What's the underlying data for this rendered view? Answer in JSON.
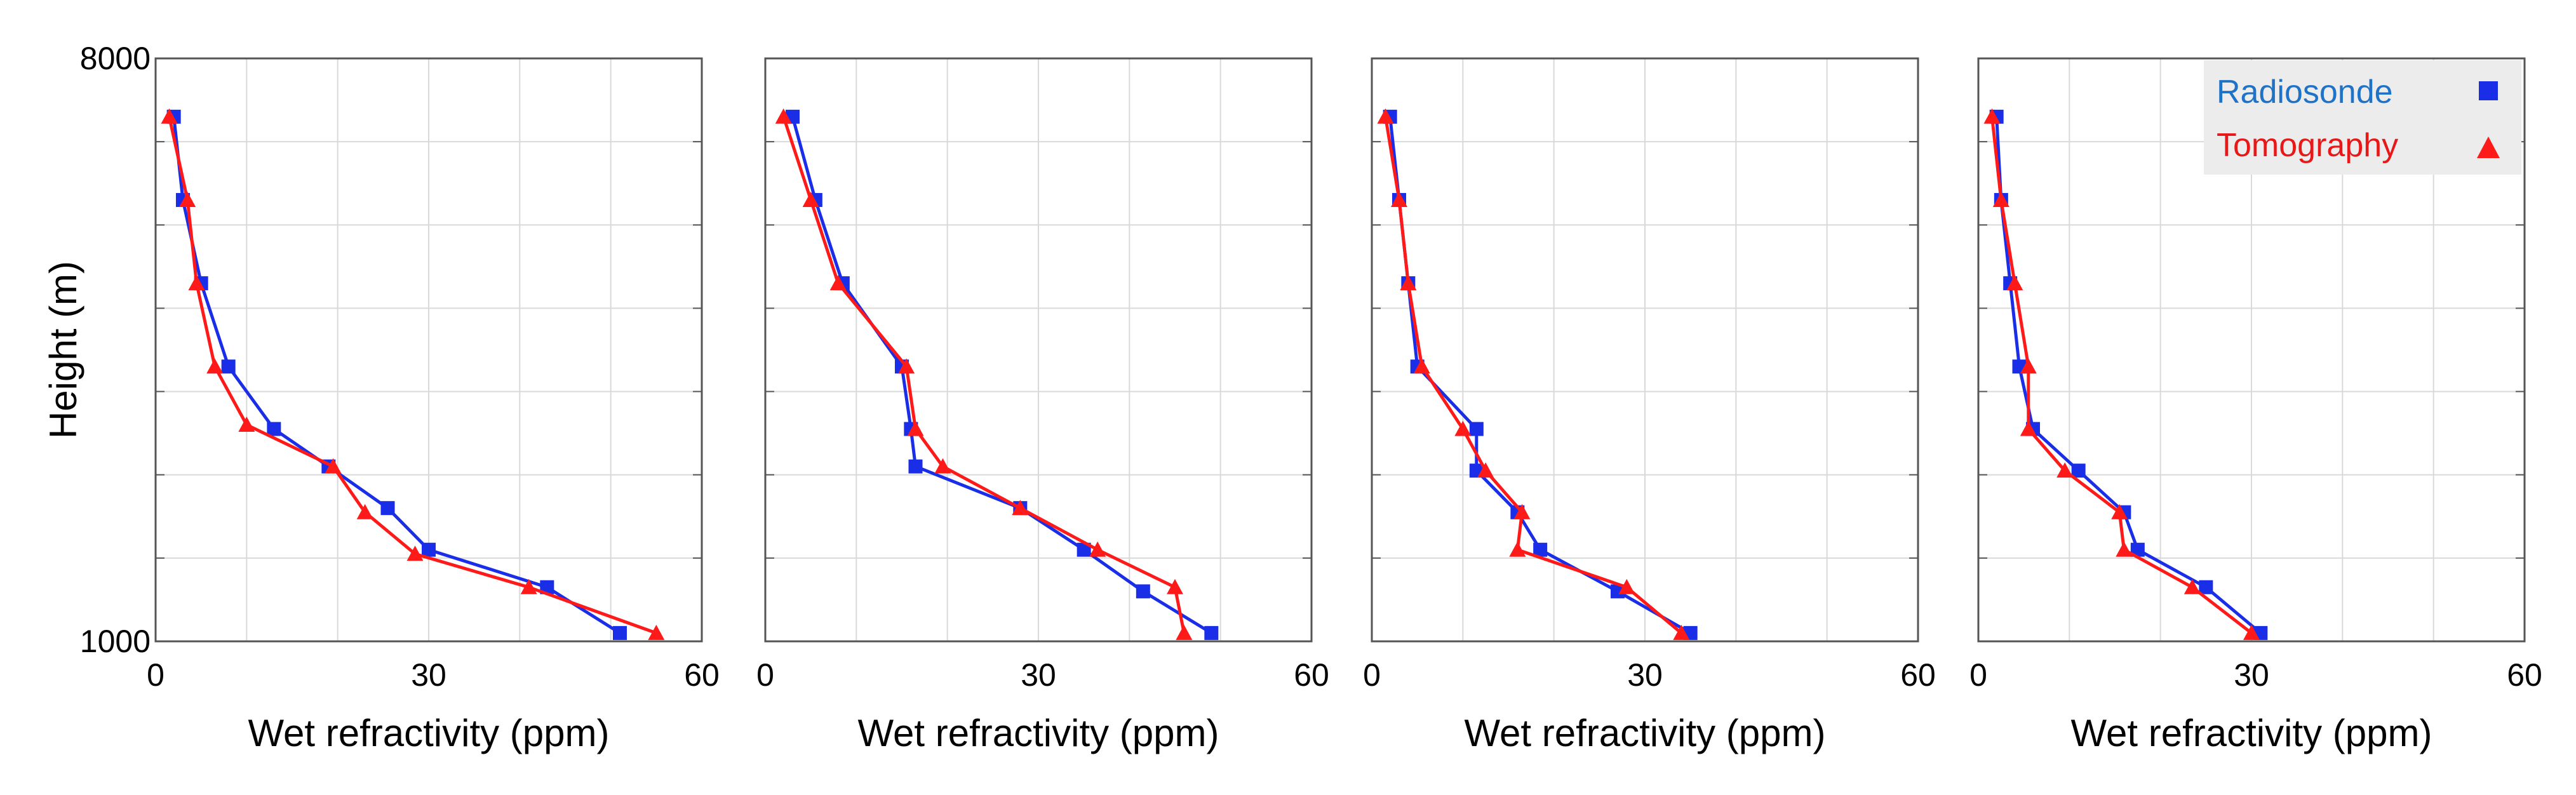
{
  "colors": {
    "radiosonde": "#1a2ee8",
    "tomography": "#ff1a1a",
    "legend_radiosonde_text": "#1e73c8",
    "legend_tomography_text": "#e81818",
    "legend_bg": "#ececec",
    "grid": "#d9d9d9",
    "frame": "#555555"
  },
  "legend": {
    "radiosonde": "Radiosonde",
    "tomography": "Tomography"
  },
  "chart_data": [
    {
      "type": "line",
      "xlabel": "Wet refractivity (ppm)",
      "ylabel": "Height (m)",
      "xlim": [
        0,
        60
      ],
      "ylim": [
        1000,
        8000
      ],
      "xticks": [
        "0",
        "30",
        "60"
      ],
      "yticks": [
        "1000",
        "8000"
      ],
      "grid": true,
      "series": [
        {
          "name": "Radiosonde",
          "marker": "square",
          "x": [
            51,
            43,
            30,
            25.5,
            19,
            13,
            8,
            5,
            3,
            2
          ],
          "y": [
            1100,
            1650,
            2100,
            2600,
            3100,
            3550,
            4300,
            5300,
            6300,
            7300
          ]
        },
        {
          "name": "Tomography",
          "marker": "triangle",
          "x": [
            55,
            41,
            28.5,
            23,
            19.5,
            10,
            6.5,
            4.5,
            3.5,
            1.5
          ],
          "y": [
            1100,
            1650,
            2050,
            2550,
            3100,
            3600,
            4300,
            5300,
            6300,
            7300
          ]
        }
      ]
    },
    {
      "type": "line",
      "xlabel": "Wet refractivity (ppm)",
      "ylabel": "",
      "xlim": [
        0,
        60
      ],
      "ylim": [
        1000,
        8000
      ],
      "xticks": [
        "0",
        "30",
        "60"
      ],
      "yticks": [],
      "grid": true,
      "series": [
        {
          "name": "Radiosonde",
          "marker": "square",
          "x": [
            49,
            41.5,
            35,
            28,
            16.5,
            16,
            15,
            8.5,
            5.5,
            3
          ],
          "y": [
            1100,
            1600,
            2100,
            2600,
            3100,
            3550,
            4300,
            5300,
            6300,
            7300
          ]
        },
        {
          "name": "Tomography",
          "marker": "triangle",
          "x": [
            46,
            45,
            36.5,
            28,
            19.5,
            16.5,
            15.5,
            8,
            5,
            2
          ],
          "y": [
            1100,
            1650,
            2100,
            2600,
            3100,
            3550,
            4300,
            5300,
            6300,
            7300
          ]
        }
      ]
    },
    {
      "type": "line",
      "xlabel": "Wet refractivity (ppm)",
      "ylabel": "",
      "xlim": [
        0,
        60
      ],
      "ylim": [
        1000,
        8000
      ],
      "xticks": [
        "0",
        "30",
        "60"
      ],
      "yticks": [],
      "grid": true,
      "series": [
        {
          "name": "Radiosonde",
          "marker": "square",
          "x": [
            35,
            27,
            18.5,
            16,
            11.5,
            11.5,
            5,
            4,
            3,
            2
          ],
          "y": [
            1100,
            1600,
            2100,
            2550,
            3050,
            3550,
            4300,
            5300,
            6300,
            7300
          ]
        },
        {
          "name": "Tomography",
          "marker": "triangle",
          "x": [
            34,
            28,
            16,
            16.5,
            12.5,
            10,
            5.5,
            4,
            3,
            1.5
          ],
          "y": [
            1100,
            1650,
            2100,
            2550,
            3050,
            3550,
            4300,
            5300,
            6300,
            7300
          ]
        }
      ]
    },
    {
      "type": "line",
      "xlabel": "Wet refractivity (ppm)",
      "ylabel": "",
      "xlim": [
        0,
        60
      ],
      "ylim": [
        1000,
        8000
      ],
      "xticks": [
        "0",
        "30",
        "60"
      ],
      "yticks": [],
      "grid": true,
      "series": [
        {
          "name": "Radiosonde",
          "marker": "square",
          "x": [
            31,
            25,
            17.5,
            16,
            11,
            6,
            4.5,
            3.5,
            2.5,
            2
          ],
          "y": [
            1100,
            1650,
            2100,
            2550,
            3050,
            3550,
            4300,
            5300,
            6300,
            7300
          ]
        },
        {
          "name": "Tomography",
          "marker": "triangle",
          "x": [
            30,
            23.5,
            16,
            15.5,
            9.5,
            5.5,
            5.5,
            4,
            2.5,
            1.5
          ],
          "y": [
            1100,
            1650,
            2100,
            2550,
            3050,
            3550,
            4300,
            5300,
            6300,
            7300
          ]
        }
      ]
    }
  ]
}
